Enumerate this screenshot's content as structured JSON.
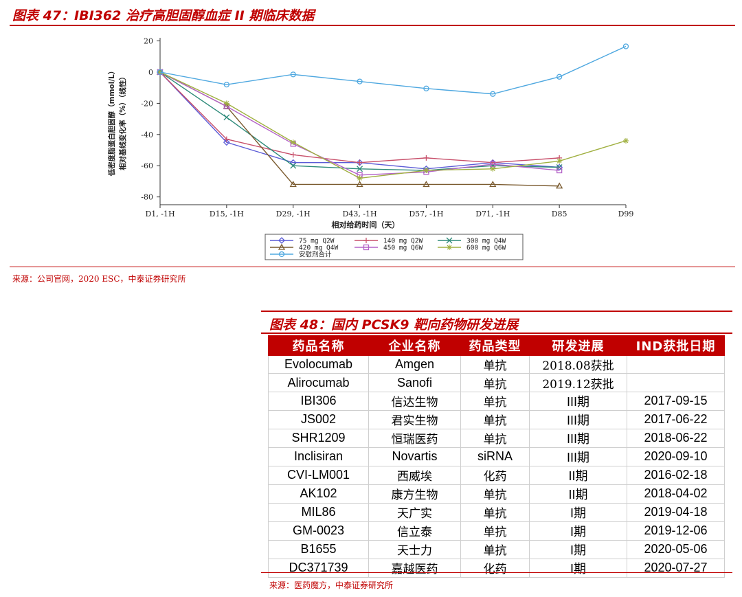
{
  "figure47": {
    "title": "图表 47：IBI362 治疗高胆固醇血症 II 期临床数据",
    "source": "来源：公司官网，2020 ESC，中泰证券研究所"
  },
  "chart_data": {
    "type": "line",
    "xlabel": "相对给药时间（天）",
    "ylabel_line1": "低密度脂蛋白胆固醇（mmol/L）",
    "ylabel_line2": "相对基线变化率（%）（线性）",
    "categories": [
      "D1, -1H",
      "D15, -1H",
      "D29, -1H",
      "D43, -1H",
      "D57, -1H",
      "D71, -1H",
      "D85",
      "D99"
    ],
    "ylim": [
      -85,
      22
    ],
    "yticks": [
      20,
      0,
      -20,
      -40,
      -60,
      -80
    ],
    "grid": false,
    "legend_position": "bottom",
    "series": [
      {
        "name": "75 mg Q2W",
        "color": "#5b5bd6",
        "marker": "diamond",
        "values": [
          0,
          -45,
          -58,
          -58,
          -62,
          -58,
          -61,
          null
        ]
      },
      {
        "name": "140 mg Q2W",
        "color": "#c8506b",
        "marker": "plus",
        "values": [
          0,
          -43,
          -53,
          -58,
          -55,
          -58,
          -55,
          null
        ]
      },
      {
        "name": "300 mg Q4W",
        "color": "#2e8b7a",
        "marker": "x",
        "values": [
          0,
          -29,
          -60,
          -62,
          -63,
          -60,
          -61,
          null
        ]
      },
      {
        "name": "420 mg Q4W",
        "color": "#7a5a2e",
        "marker": "triangle",
        "values": [
          0,
          -22,
          -72,
          -72,
          -72,
          -72,
          -73,
          null
        ]
      },
      {
        "name": "450 mg Q6W",
        "color": "#b463c8",
        "marker": "square",
        "values": [
          0,
          -22,
          -46,
          -66,
          -64,
          -59,
          -63,
          null
        ]
      },
      {
        "name": "600 mg Q6W",
        "color": "#a0b040",
        "marker": "star",
        "values": [
          0,
          -20,
          -45,
          -68,
          -63,
          -62,
          -57,
          -44
        ]
      },
      {
        "name": "安慰剂合计",
        "color": "#4fa8e0",
        "marker": "circle",
        "values": [
          0,
          -8,
          -1.5,
          -6,
          -10.5,
          -14,
          -3,
          16.5
        ]
      }
    ]
  },
  "figure48": {
    "title": "图表 48：国内 PCSK9 靶向药物研发进展",
    "source": "来源：医药魔方，中泰证券研究所",
    "headers": [
      "药品名称",
      "企业名称",
      "药品类型",
      "研发进展",
      "IND获批日期"
    ],
    "rows": [
      [
        "Evolocumab",
        "Amgen",
        "单抗",
        "2018.08获批",
        ""
      ],
      [
        "Alirocumab",
        "Sanofi",
        "单抗",
        "2019.12获批",
        ""
      ],
      [
        "IBI306",
        "信达生物",
        "单抗",
        "III期",
        "2017-09-15"
      ],
      [
        "JS002",
        "君实生物",
        "单抗",
        "III期",
        "2017-06-22"
      ],
      [
        "SHR1209",
        "恒瑞医药",
        "单抗",
        "III期",
        "2018-06-22"
      ],
      [
        "Inclisiran",
        "Novartis",
        "siRNA",
        "III期",
        "2020-09-10"
      ],
      [
        "CVI-LM001",
        "西威埃",
        "化药",
        "II期",
        "2016-02-18"
      ],
      [
        "AK102",
        "康方生物",
        "单抗",
        "II期",
        "2018-04-02"
      ],
      [
        "MIL86",
        "天广实",
        "单抗",
        "I期",
        "2019-04-18"
      ],
      [
        "GM-0023",
        "信立泰",
        "单抗",
        "I期",
        "2019-12-06"
      ],
      [
        "B1655",
        "天士力",
        "单抗",
        "I期",
        "2020-05-06"
      ],
      [
        "DC371739",
        "嘉越医药",
        "化药",
        "I期",
        "2020-07-27"
      ]
    ]
  }
}
